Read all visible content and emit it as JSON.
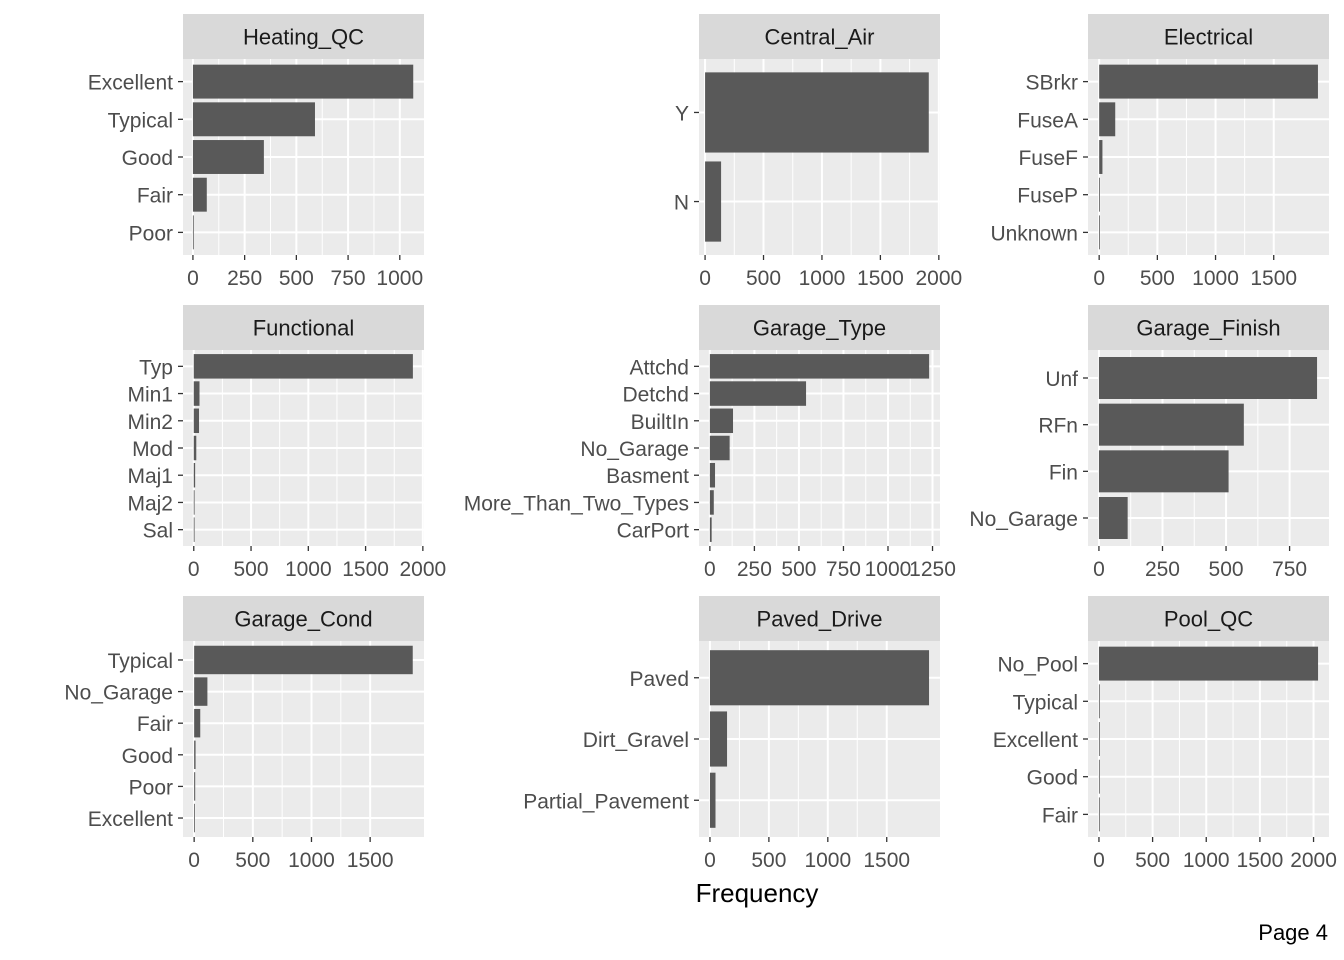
{
  "figure": {
    "xlabel": "Frequency",
    "footer": "Page 4",
    "bar_color": "#595959",
    "panel_bg": "#ebebeb",
    "strip_bg": "#d9d9d9",
    "grid_color": "#ffffff"
  },
  "chart_data": [
    {
      "type": "bar",
      "orientation": "horizontal",
      "title": "Heating_QC",
      "categories": [
        "Excellent",
        "Typical",
        "Good",
        "Fair",
        "Poor"
      ],
      "values": [
        1065,
        590,
        343,
        67,
        2
      ],
      "ticks": [
        0,
        250,
        500,
        750,
        1000
      ],
      "xlim": [
        -48,
        1117
      ]
    },
    {
      "type": "bar",
      "orientation": "horizontal",
      "title": "Central_Air",
      "categories": [
        "Y",
        "N"
      ],
      "values": [
        1914,
        137
      ],
      "ticks": [
        0,
        500,
        1000,
        1500,
        2000
      ],
      "xlim": [
        -52,
        2010
      ]
    },
    {
      "type": "bar",
      "orientation": "horizontal",
      "title": "Electrical",
      "categories": [
        "SBrkr",
        "FuseA",
        "FuseF",
        "FuseP",
        "Unknown"
      ],
      "values": [
        1880,
        138,
        28,
        4,
        1
      ],
      "ticks": [
        0,
        500,
        1000,
        1500
      ],
      "xlim": [
        -96,
        1975
      ]
    },
    {
      "type": "bar",
      "orientation": "horizontal",
      "title": "Functional",
      "categories": [
        "Typ",
        "Min1",
        "Min2",
        "Mod",
        "Maj1",
        "Maj2",
        "Sal"
      ],
      "values": [
        1913,
        50,
        46,
        22,
        12,
        4,
        1
      ],
      "ticks": [
        0,
        500,
        1000,
        1500,
        2000
      ],
      "xlim": [
        -94,
        2010
      ]
    },
    {
      "type": "bar",
      "orientation": "horizontal",
      "title": "Garage_Type",
      "categories": [
        "Attchd",
        "Detchd",
        "BuiltIn",
        "No_Garage",
        "Basment",
        "More_Than_Two_Types",
        "CarPort"
      ],
      "values": [
        1231,
        540,
        130,
        111,
        29,
        22,
        10
      ],
      "ticks": [
        0,
        250,
        500,
        750,
        1000,
        1250
      ],
      "xlim": [
        -61,
        1292
      ]
    },
    {
      "type": "bar",
      "orientation": "horizontal",
      "title": "Garage_Finish",
      "categories": [
        "Unf",
        "RFn",
        "Fin",
        "No_Garage"
      ],
      "values": [
        858,
        570,
        510,
        113
      ],
      "ticks": [
        0,
        250,
        500,
        750
      ],
      "xlim": [
        -43,
        905
      ]
    },
    {
      "type": "bar",
      "orientation": "horizontal",
      "title": "Garage_Cond",
      "categories": [
        "Typical",
        "No_Garage",
        "Fair",
        "Good",
        "Poor",
        "Excellent"
      ],
      "values": [
        1863,
        113,
        52,
        12,
        9,
        2
      ],
      "ticks": [
        0,
        500,
        1000,
        1500
      ],
      "xlim": [
        -95,
        1959
      ]
    },
    {
      "type": "bar",
      "orientation": "horizontal",
      "title": "Paved_Drive",
      "categories": [
        "Paved",
        "Dirt_Gravel",
        "Partial_Pavement"
      ],
      "values": [
        1859,
        145,
        47
      ],
      "ticks": [
        0,
        500,
        1000,
        1500
      ],
      "xlim": [
        -93,
        1952
      ]
    },
    {
      "type": "bar",
      "orientation": "horizontal",
      "title": "Pool_QC",
      "categories": [
        "No_Pool",
        "Typical",
        "Excellent",
        "Good",
        "Fair"
      ],
      "values": [
        2042,
        3,
        2,
        2,
        2
      ],
      "ticks": [
        0,
        500,
        1000,
        1500,
        2000
      ],
      "xlim": [
        -102,
        2144
      ]
    }
  ]
}
